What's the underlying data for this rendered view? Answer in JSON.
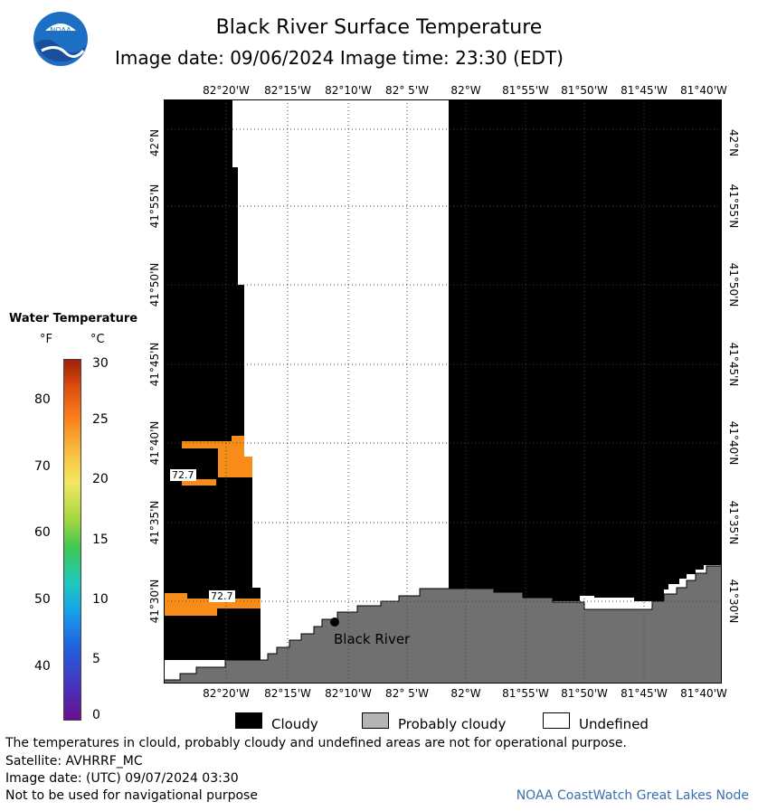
{
  "title": "Black River Surface Temperature",
  "subtitle": "Image date: 09/06/2024     Image time: 23:30 (EDT)",
  "logo_text": "NOAA",
  "lon_ticks": [
    "82°20'W",
    "82°15'W",
    "82°10'W",
    "82° 5'W",
    "82°W",
    "81°55'W",
    "81°50'W",
    "81°45'W",
    "81°40'W"
  ],
  "lat_ticks": [
    "42°N",
    "41°55'N",
    "41°50'N",
    "41°45'N",
    "41°40'N",
    "41°35'N",
    "41°30'N"
  ],
  "legend": {
    "title": "Water Temperature",
    "unit_f": "°F",
    "unit_c": "°C",
    "f_ticks": [
      "80",
      "70",
      "60",
      "50",
      "40"
    ],
    "c_ticks": [
      "30",
      "25",
      "20",
      "15",
      "10",
      "5",
      "0"
    ]
  },
  "map_labels": {
    "temp_a": "72.7",
    "temp_b": "72.7",
    "place": "Black River"
  },
  "key": {
    "cloudy": "Cloudy",
    "probably_cloudy": "Probably cloudy",
    "undefined": "Undefined"
  },
  "footer": {
    "line1": "The temperatures in clould, probably cloudy and undefined areas are not for operational purpose.",
    "line2": "Satellite: AVHRRF_MC",
    "line3": "Image date: (UTC) 09/07/2024  03:30",
    "line4": "Not to be used for navigational purpose",
    "credit": "NOAA CoastWatch Great Lakes Node"
  },
  "colors": {
    "cloudy": "#000000",
    "probably_cloudy": "#707070",
    "undefined": "#ffffff",
    "water_warm": "#f88c18"
  }
}
